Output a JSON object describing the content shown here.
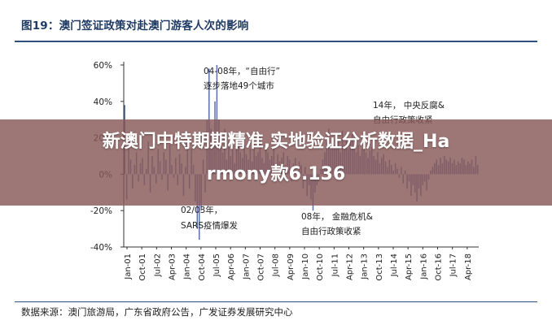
{
  "figure": {
    "title": "图19：澳门签证政策对赴澳门游客人次的影响",
    "source": "数据来源：澳门旅游局，广东省政府公告，广发证券发展研究中心"
  },
  "overlay": {
    "line1": "新澳门中特期期精准,实地验证分析数据_Ha",
    "line2": "rmony款6.136"
  },
  "colors": {
    "bar": "#5b6fa6",
    "axis": "#333333",
    "title": "#1f3b63",
    "overlay_band": "#885858"
  },
  "chart_data": {
    "type": "bar",
    "title": "",
    "xlabel": "",
    "ylabel": "",
    "ylim": [
      -40,
      60
    ],
    "yticks": [
      "60%",
      "40%",
      "20%",
      "0%",
      "-20%",
      "-40%"
    ],
    "ytick_values": [
      60,
      40,
      20,
      0,
      -20,
      -40
    ],
    "x_tick_labels": [
      "Jan-01",
      "Oct-01",
      "Jul-02",
      "Apr-03",
      "Jan-04",
      "Oct-04",
      "Jul-05",
      "Apr-06",
      "Jan-07",
      "Oct-07",
      "Jul-08",
      "Apr-09",
      "Jan-10",
      "Oct-10",
      "Jul-11",
      "Apr-12",
      "Jan-13",
      "Oct-13",
      "Jul-14",
      "Apr-15",
      "Jan-16",
      "Oct-16",
      "Jul-17",
      "Apr-18"
    ],
    "series": [
      {
        "values": [
          38,
          -14,
          15,
          8,
          -8,
          5,
          12,
          -4,
          6,
          9,
          -6,
          3,
          18,
          -10,
          10,
          4,
          -5,
          14,
          7,
          -3,
          12,
          8,
          -9,
          16,
          5,
          -2,
          9,
          -6,
          11,
          6,
          -12,
          4,
          20,
          -8,
          14,
          5,
          -15,
          -30,
          -36,
          -20,
          8,
          -10,
          30,
          58,
          25,
          15,
          40,
          60,
          30,
          20,
          12,
          25,
          8,
          18,
          10,
          15,
          6,
          14,
          20,
          12,
          9,
          16,
          11,
          8,
          14,
          7,
          18,
          10,
          12,
          20,
          9,
          6,
          15,
          12,
          8,
          10,
          14,
          6,
          11,
          7,
          9,
          12,
          5,
          10,
          8,
          -4,
          6,
          9,
          -3,
          7,
          5,
          -8,
          4,
          -12,
          -6,
          -14,
          -20,
          -10,
          -6,
          -4,
          3,
          8,
          12,
          18,
          25,
          14,
          20,
          16,
          22,
          18,
          12,
          24,
          16,
          20,
          14,
          18,
          22,
          15,
          12,
          16,
          10,
          14,
          18,
          12,
          9,
          13,
          15,
          10,
          8,
          12,
          6,
          9,
          11,
          7,
          4,
          8,
          5,
          2,
          6,
          3,
          -2,
          4,
          -5,
          2,
          -8,
          -4,
          -12,
          -6,
          -10,
          -15,
          -8,
          -12,
          -6,
          -4,
          -9,
          -3,
          2,
          4,
          6,
          8,
          5,
          9,
          6,
          10,
          8,
          7,
          9,
          6,
          8,
          5,
          7,
          6,
          9,
          8,
          5,
          7,
          6,
          8,
          4,
          10,
          5
        ]
      }
    ],
    "annotations": [
      {
        "text_line1": "04-08年，“自由行”",
        "text_line2": "逐步落地49个城市"
      },
      {
        "text_line1": "14年， 中央反腐&",
        "text_line2": "自由行政策收紧"
      },
      {
        "text_line1": "02/03年，",
        "text_line2": "SARS疫情爆发"
      },
      {
        "text_line1": "08年， 金融危机&",
        "text_line2": "自由行政策收紧"
      }
    ]
  }
}
